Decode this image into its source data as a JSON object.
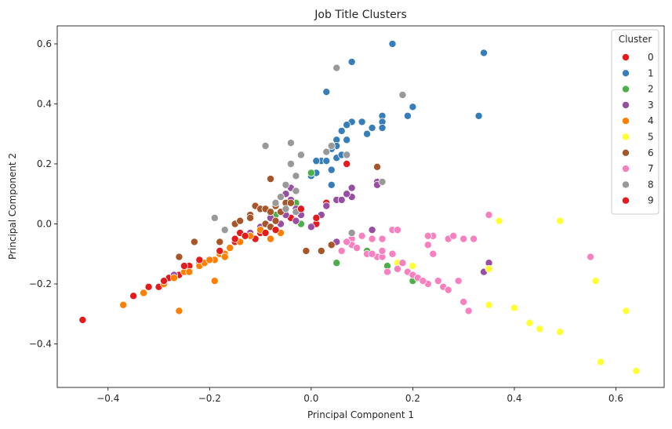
{
  "chart_data": {
    "type": "scatter",
    "title": "Job Title Clusters",
    "xlabel": "Principal Component 1",
    "ylabel": "Principal Component 2",
    "xlim": [
      -0.5,
      0.695
    ],
    "ylim": [
      -0.545,
      0.66
    ],
    "xticks": [
      -0.4,
      -0.2,
      0.0,
      0.2,
      0.4,
      0.6
    ],
    "xtick_labels": [
      "−0.4",
      "−0.2",
      "0.0",
      "0.2",
      "0.4",
      "0.6"
    ],
    "yticks": [
      -0.4,
      -0.2,
      0.0,
      0.2,
      0.4,
      0.6
    ],
    "ytick_labels": [
      "−0.4",
      "−0.2",
      "0.0",
      "0.2",
      "0.4",
      "0.6"
    ],
    "grid": false,
    "legend": {
      "title": "Cluster",
      "placement": "top-right"
    },
    "series": [
      {
        "name": "0",
        "color": "#e41a1c",
        "points": [
          [
            -0.45,
            -0.32
          ],
          [
            -0.35,
            -0.24
          ],
          [
            -0.32,
            -0.21
          ],
          [
            -0.3,
            -0.21
          ],
          [
            -0.28,
            -0.18
          ],
          [
            -0.26,
            -0.17
          ],
          [
            -0.24,
            -0.14
          ],
          [
            -0.22,
            -0.13
          ],
          [
            -0.18,
            -0.09
          ],
          [
            -0.14,
            -0.03
          ],
          [
            -0.12,
            -0.04
          ],
          [
            -0.1,
            -0.03
          ],
          [
            -0.08,
            -0.01
          ],
          [
            -0.04,
            0.02
          ],
          [
            -0.02,
            0.05
          ],
          [
            0.01,
            0.0
          ],
          [
            0.03,
            0.07
          ],
          [
            0.06,
            0.08
          ],
          [
            0.07,
            0.2
          ],
          [
            -0.11,
            -0.05
          ],
          [
            -0.15,
            -0.06
          ]
        ]
      },
      {
        "name": "1",
        "color": "#377eb8",
        "points": [
          [
            0.16,
            0.6
          ],
          [
            0.34,
            0.57
          ],
          [
            0.08,
            0.54
          ],
          [
            0.03,
            0.44
          ],
          [
            0.2,
            0.39
          ],
          [
            0.14,
            0.36
          ],
          [
            0.14,
            0.34
          ],
          [
            0.08,
            0.34
          ],
          [
            0.19,
            0.36
          ],
          [
            0.33,
            0.36
          ],
          [
            0.1,
            0.34
          ],
          [
            0.07,
            0.33
          ],
          [
            0.06,
            0.31
          ],
          [
            0.12,
            0.32
          ],
          [
            0.14,
            0.32
          ],
          [
            0.05,
            0.28
          ],
          [
            0.07,
            0.28
          ],
          [
            0.11,
            0.3
          ],
          [
            0.05,
            0.26
          ],
          [
            0.04,
            0.25
          ],
          [
            0.05,
            0.22
          ],
          [
            0.02,
            0.21
          ],
          [
            0.03,
            0.21
          ],
          [
            0.01,
            0.21
          ],
          [
            0.06,
            0.23
          ],
          [
            0.04,
            0.18
          ],
          [
            0.0,
            0.16
          ],
          [
            0.01,
            0.17
          ],
          [
            0.04,
            0.13
          ]
        ]
      },
      {
        "name": "2",
        "color": "#4daf4a",
        "points": [
          [
            0.0,
            0.17
          ],
          [
            -0.03,
            0.07
          ],
          [
            -0.06,
            -0.03
          ],
          [
            -0.02,
            0.0
          ],
          [
            0.05,
            -0.13
          ],
          [
            0.15,
            -0.14
          ],
          [
            0.2,
            -0.19
          ],
          [
            0.11,
            -0.09
          ],
          [
            -0.07,
            0.03
          ]
        ]
      },
      {
        "name": "3",
        "color": "#984ea3",
        "points": [
          [
            -0.04,
            0.12
          ],
          [
            -0.05,
            0.1
          ],
          [
            -0.04,
            0.08
          ],
          [
            -0.03,
            0.05
          ],
          [
            -0.06,
            0.04
          ],
          [
            -0.05,
            0.03
          ],
          [
            -0.02,
            0.03
          ],
          [
            -0.03,
            0.01
          ],
          [
            0.0,
            -0.01
          ],
          [
            0.02,
            0.03
          ],
          [
            0.03,
            0.06
          ],
          [
            0.05,
            0.08
          ],
          [
            0.06,
            0.08
          ],
          [
            0.08,
            0.09
          ],
          [
            0.08,
            0.12
          ],
          [
            0.07,
            0.1
          ],
          [
            0.13,
            0.14
          ],
          [
            0.13,
            0.13
          ],
          [
            0.12,
            -0.02
          ],
          [
            0.05,
            -0.06
          ],
          [
            0.06,
            -0.09
          ],
          [
            0.34,
            -0.16
          ],
          [
            0.35,
            -0.13
          ],
          [
            -0.02,
            0.03
          ],
          [
            -0.06,
            0.0
          ],
          [
            -0.08,
            0.02
          ],
          [
            -0.1,
            -0.01
          ],
          [
            -0.12,
            -0.03
          ],
          [
            -0.16,
            -0.08
          ],
          [
            -0.27,
            -0.17
          ]
        ]
      },
      {
        "name": "4",
        "color": "#ff7f00",
        "points": [
          [
            -0.37,
            -0.27
          ],
          [
            -0.33,
            -0.23
          ],
          [
            -0.29,
            -0.2
          ],
          [
            -0.27,
            -0.18
          ],
          [
            -0.26,
            -0.29
          ],
          [
            -0.25,
            -0.16
          ],
          [
            -0.24,
            -0.16
          ],
          [
            -0.22,
            -0.14
          ],
          [
            -0.21,
            -0.13
          ],
          [
            -0.19,
            -0.19
          ],
          [
            -0.19,
            -0.12
          ],
          [
            -0.18,
            -0.1
          ],
          [
            -0.17,
            -0.1
          ],
          [
            -0.16,
            -0.08
          ],
          [
            -0.14,
            -0.06
          ],
          [
            -0.12,
            -0.04
          ],
          [
            -0.1,
            -0.02
          ],
          [
            -0.08,
            -0.05
          ],
          [
            -0.06,
            -0.03
          ],
          [
            -0.17,
            -0.11
          ],
          [
            -0.2,
            -0.12
          ]
        ]
      },
      {
        "name": "5",
        "color": "#ffff33",
        "points": [
          [
            0.37,
            0.01
          ],
          [
            0.49,
            0.01
          ],
          [
            0.56,
            -0.19
          ],
          [
            0.62,
            -0.29
          ],
          [
            0.64,
            -0.49
          ],
          [
            0.57,
            -0.46
          ],
          [
            0.49,
            -0.36
          ],
          [
            0.45,
            -0.35
          ],
          [
            0.43,
            -0.33
          ],
          [
            0.4,
            -0.28
          ],
          [
            0.35,
            -0.27
          ],
          [
            0.35,
            -0.15
          ],
          [
            0.17,
            -0.13
          ],
          [
            0.2,
            -0.14
          ]
        ]
      },
      {
        "name": "6",
        "color": "#a65628",
        "points": [
          [
            -0.26,
            -0.11
          ],
          [
            -0.23,
            -0.06
          ],
          [
            -0.18,
            -0.06
          ],
          [
            -0.15,
            0.0
          ],
          [
            -0.14,
            0.01
          ],
          [
            -0.12,
            0.03
          ],
          [
            -0.12,
            0.02
          ],
          [
            -0.11,
            0.06
          ],
          [
            -0.1,
            0.05
          ],
          [
            -0.09,
            0.05
          ],
          [
            -0.08,
            0.04
          ],
          [
            -0.07,
            0.06
          ],
          [
            -0.06,
            0.04
          ],
          [
            -0.05,
            0.07
          ],
          [
            -0.04,
            0.07
          ],
          [
            -0.09,
            0.0
          ],
          [
            -0.08,
            -0.01
          ],
          [
            -0.07,
            0.01
          ],
          [
            -0.01,
            -0.09
          ],
          [
            0.02,
            -0.09
          ],
          [
            0.04,
            -0.07
          ],
          [
            0.13,
            0.19
          ],
          [
            -0.08,
            0.15
          ]
        ]
      },
      {
        "name": "7",
        "color": "#f781bf",
        "points": [
          [
            0.35,
            0.03
          ],
          [
            0.32,
            -0.05
          ],
          [
            0.3,
            -0.05
          ],
          [
            0.27,
            -0.05
          ],
          [
            0.28,
            -0.04
          ],
          [
            0.24,
            -0.04
          ],
          [
            0.23,
            -0.04
          ],
          [
            0.23,
            -0.07
          ],
          [
            0.24,
            -0.1
          ],
          [
            0.25,
            -0.19
          ],
          [
            0.23,
            -0.2
          ],
          [
            0.26,
            -0.21
          ],
          [
            0.27,
            -0.22
          ],
          [
            0.29,
            -0.19
          ],
          [
            0.3,
            -0.26
          ],
          [
            0.31,
            -0.29
          ],
          [
            0.55,
            -0.11
          ],
          [
            0.16,
            -0.02
          ],
          [
            0.17,
            -0.02
          ],
          [
            0.14,
            -0.05
          ],
          [
            0.12,
            -0.05
          ],
          [
            0.1,
            -0.04
          ],
          [
            0.08,
            -0.05
          ],
          [
            0.08,
            -0.07
          ],
          [
            0.09,
            -0.08
          ],
          [
            0.11,
            -0.1
          ],
          [
            0.13,
            -0.11
          ],
          [
            0.14,
            -0.11
          ],
          [
            0.12,
            -0.1
          ],
          [
            0.14,
            -0.09
          ],
          [
            0.16,
            -0.1
          ],
          [
            0.17,
            -0.15
          ],
          [
            0.19,
            -0.16
          ],
          [
            0.2,
            -0.17
          ],
          [
            0.21,
            -0.18
          ],
          [
            0.22,
            -0.19
          ],
          [
            0.18,
            -0.13
          ],
          [
            0.15,
            -0.16
          ],
          [
            0.06,
            -0.09
          ],
          [
            0.07,
            -0.06
          ]
        ]
      },
      {
        "name": "8",
        "color": "#999999",
        "points": [
          [
            0.05,
            0.52
          ],
          [
            0.18,
            0.43
          ],
          [
            0.04,
            0.26
          ],
          [
            0.07,
            0.23
          ],
          [
            -0.09,
            0.26
          ],
          [
            -0.04,
            0.27
          ],
          [
            -0.02,
            0.23
          ],
          [
            -0.04,
            0.2
          ],
          [
            -0.03,
            0.16
          ],
          [
            -0.05,
            0.13
          ],
          [
            -0.03,
            0.11
          ],
          [
            -0.06,
            0.09
          ],
          [
            -0.07,
            0.07
          ],
          [
            -0.05,
            0.05
          ],
          [
            -0.03,
            0.04
          ],
          [
            -0.19,
            0.02
          ],
          [
            -0.17,
            -0.02
          ],
          [
            0.14,
            0.14
          ],
          [
            0.08,
            -0.03
          ],
          [
            0.03,
            0.24
          ]
        ]
      },
      {
        "name": "9",
        "color": "#e41a1c",
        "points": [
          [
            -0.02,
            0.05
          ],
          [
            -0.07,
            -0.02
          ],
          [
            -0.09,
            -0.03
          ],
          [
            -0.13,
            -0.04
          ],
          [
            -0.15,
            -0.05
          ],
          [
            -0.22,
            -0.12
          ],
          [
            -0.25,
            -0.14
          ],
          [
            -0.29,
            -0.19
          ],
          [
            -0.18,
            -0.09
          ],
          [
            0.01,
            0.02
          ]
        ]
      }
    ]
  }
}
